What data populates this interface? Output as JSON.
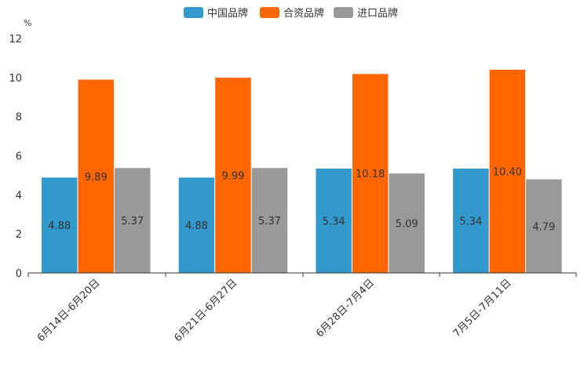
{
  "chart_data": {
    "type": "bar",
    "title": "",
    "xlabel": "",
    "ylabel": "%",
    "ylim": [
      0,
      12
    ],
    "yticks": [
      0,
      2,
      4,
      6,
      8,
      10,
      12
    ],
    "grid": false,
    "legend_position": "top-center",
    "categories": [
      "6月14日-6月20日",
      "6月21日-6月27日",
      "6月28日-7月4日",
      "7月5日-7月11日"
    ],
    "series": [
      {
        "name": "中国品牌",
        "color": "#3399cc",
        "values": [
          4.88,
          4.88,
          5.34,
          5.34
        ],
        "labels": [
          "4.88",
          "4.88",
          "5.34",
          "5.34"
        ]
      },
      {
        "name": "合资品牌",
        "color": "#ff6600",
        "values": [
          9.89,
          9.99,
          10.18,
          10.4
        ],
        "labels": [
          "9.89",
          "9.99",
          "10.18",
          "10.40"
        ]
      },
      {
        "name": "进口品牌",
        "color": "#999999",
        "values": [
          5.37,
          5.37,
          5.09,
          4.79
        ],
        "labels": [
          "5.37",
          "5.37",
          "5.09",
          "4.79"
        ]
      }
    ]
  }
}
